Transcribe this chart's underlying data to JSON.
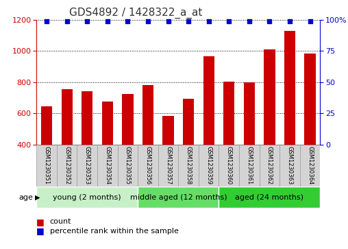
{
  "title": "GDS4892 / 1428322_a_at",
  "samples": [
    "GSM1230351",
    "GSM1230352",
    "GSM1230353",
    "GSM1230354",
    "GSM1230355",
    "GSM1230356",
    "GSM1230357",
    "GSM1230358",
    "GSM1230359",
    "GSM1230360",
    "GSM1230361",
    "GSM1230362",
    "GSM1230363",
    "GSM1230364"
  ],
  "counts": [
    645,
    755,
    740,
    675,
    725,
    780,
    585,
    695,
    965,
    805,
    800,
    1010,
    1130,
    985
  ],
  "percentiles": [
    99,
    99,
    99,
    99,
    99,
    99,
    99,
    99,
    99,
    99,
    99,
    99,
    99,
    99
  ],
  "ylim_left": [
    400,
    1200
  ],
  "ylim_right": [
    0,
    100
  ],
  "yticks_left": [
    400,
    600,
    800,
    1000,
    1200
  ],
  "yticks_right": [
    0,
    25,
    50,
    75,
    100
  ],
  "bar_color": "#cc0000",
  "dot_color": "#0000cc",
  "background_plot": "#ffffff",
  "groups": [
    {
      "label": "young (2 months)",
      "start": 0,
      "end": 5,
      "color": "#c8f0c8"
    },
    {
      "label": "middle aged (12 months)",
      "start": 5,
      "end": 9,
      "color": "#66dd66"
    },
    {
      "label": "aged (24 months)",
      "start": 9,
      "end": 14,
      "color": "#33cc33"
    }
  ],
  "age_label": "age",
  "legend_count_label": "count",
  "legend_percentile_label": "percentile rank within the sample",
  "right_axis_color": "#0000cc",
  "left_axis_color": "#cc0000",
  "title_fontsize": 11,
  "tick_fontsize": 8,
  "sample_fontsize": 6,
  "group_fontsize": 8,
  "legend_fontsize": 8,
  "bar_width": 0.55
}
